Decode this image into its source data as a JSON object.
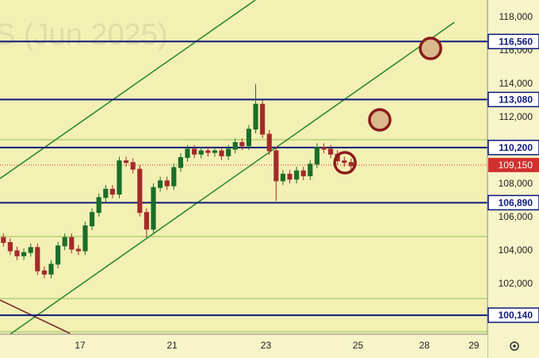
{
  "chart_data": {
    "type": "candlestick",
    "watermark": "S (Jun 2025)",
    "x": [
      1,
      3,
      5,
      7,
      9,
      11,
      13,
      15,
      17,
      19,
      21,
      23,
      25,
      27,
      29,
      31,
      33,
      35,
      37,
      39,
      41,
      43,
      45,
      47,
      49,
      51,
      53,
      55,
      57,
      59,
      61,
      63,
      65,
      67,
      69,
      71,
      73,
      75,
      77,
      79,
      81,
      83,
      85,
      87,
      89,
      91,
      93,
      95,
      97,
      99,
      101,
      103
    ],
    "open": [
      104800,
      104500,
      104000,
      103700,
      103900,
      104200,
      102800,
      102600,
      103200,
      104300,
      104800,
      104100,
      104000,
      105500,
      106300,
      107200,
      107700,
      107400,
      109400,
      109300,
      108900,
      106300,
      105300,
      107800,
      108200,
      107900,
      109000,
      109600,
      110100,
      109800,
      110000,
      109900,
      110000,
      109700,
      110100,
      110500,
      110300,
      111300,
      112800,
      111000,
      110000,
      108200,
      108600,
      108300,
      108800,
      108500,
      109200,
      110200,
      110100,
      109800,
      109400,
      109300
    ],
    "high": [
      105050,
      104750,
      104250,
      104150,
      104450,
      104450,
      103050,
      103450,
      104550,
      105050,
      105050,
      104350,
      105750,
      106550,
      107450,
      107950,
      107950,
      109650,
      109650,
      109550,
      109150,
      106550,
      108050,
      108450,
      108450,
      109250,
      109850,
      110350,
      110350,
      110250,
      110250,
      110250,
      110250,
      110350,
      110750,
      110750,
      111550,
      114000,
      113050,
      111250,
      110250,
      108850,
      108850,
      109050,
      109050,
      109450,
      110450,
      110450,
      110350,
      110050,
      109650,
      109550
    ],
    "low": [
      104250,
      103750,
      103450,
      103450,
      103650,
      102550,
      102350,
      102350,
      102950,
      104050,
      103850,
      103750,
      103750,
      105250,
      106050,
      106950,
      107150,
      107150,
      109050,
      108650,
      106050,
      104800,
      105050,
      107550,
      107650,
      107650,
      108750,
      109350,
      109550,
      109550,
      109650,
      109650,
      109450,
      109450,
      109850,
      110050,
      110050,
      111050,
      110750,
      109750,
      107000,
      107950,
      108050,
      108050,
      108250,
      108250,
      108950,
      109850,
      109550,
      109150,
      109050,
      108850
    ],
    "close": [
      104500,
      104000,
      103700,
      103900,
      104200,
      102800,
      102600,
      103200,
      104300,
      104800,
      104100,
      104000,
      105500,
      106300,
      107200,
      107700,
      107400,
      109400,
      109300,
      108900,
      106300,
      105300,
      107800,
      108200,
      107900,
      109000,
      109600,
      110100,
      109800,
      110000,
      109900,
      110000,
      109700,
      110100,
      110500,
      110300,
      111300,
      112800,
      111000,
      110000,
      108200,
      108600,
      108300,
      108800,
      108500,
      109200,
      110200,
      110100,
      109800,
      109400,
      109300,
      109100
    ],
    "up_color": "#1b6e2a",
    "down_color": "#a52a2a",
    "xlim": [
      0,
      143
    ],
    "ylim": [
      99000,
      119050
    ],
    "xticks": [
      {
        "value": 23.5,
        "label": "17"
      },
      {
        "value": 50.5,
        "label": "21"
      },
      {
        "value": 78,
        "label": "23"
      },
      {
        "value": 105,
        "label": "25"
      },
      {
        "value": 124.5,
        "label": "28"
      },
      {
        "value": 139,
        "label": "29"
      }
    ],
    "yticks": [
      {
        "value": 118000,
        "label": "118,000"
      },
      {
        "value": 116000,
        "label": "116,000"
      },
      {
        "value": 114000,
        "label": "114,000"
      },
      {
        "value": 112000,
        "label": "112,000"
      },
      {
        "value": 110000,
        "label": "110,000"
      },
      {
        "value": 108000,
        "label": "108,000"
      },
      {
        "value": 106000,
        "label": "106,000"
      },
      {
        "value": 104000,
        "label": "104,000"
      },
      {
        "value": 102000,
        "label": "102,000"
      }
    ],
    "levels": [
      {
        "value": 116560,
        "label": "116,560"
      },
      {
        "value": 113080,
        "label": "113,080"
      },
      {
        "value": 110200,
        "label": "110,200"
      },
      {
        "value": 106890,
        "label": "106,890"
      },
      {
        "value": 100140,
        "label": "100,140"
      }
    ],
    "level_color": "#0d1b7a",
    "minor_levels": [
      110670,
      104860,
      101140,
      99140
    ],
    "minor_level_color": "#8fbf5a",
    "last_price": {
      "value": 109150,
      "label": "109,150"
    },
    "last_price_color": "#d32f2f",
    "trendlines": [
      {
        "color": "#2e8b2e",
        "x": [
          0,
          133.3
        ],
        "y": [
          98571,
          117714
        ]
      },
      {
        "color": "#2e8b2e",
        "x": [
          0,
          74.9
        ],
        "y": [
          108333,
          119048
        ]
      },
      {
        "color": "#7b2a2a",
        "x": [
          0,
          20.5
        ],
        "y": [
          101048,
          99048
        ]
      }
    ],
    "markers": {
      "x": [
        126.3,
        111.4,
        101.2
      ],
      "y": [
        116143,
        111857,
        109286
      ],
      "fills": [
        "#d8b98a",
        "#d8b98a",
        "none"
      ],
      "stroke": "#8b1a1a"
    }
  }
}
